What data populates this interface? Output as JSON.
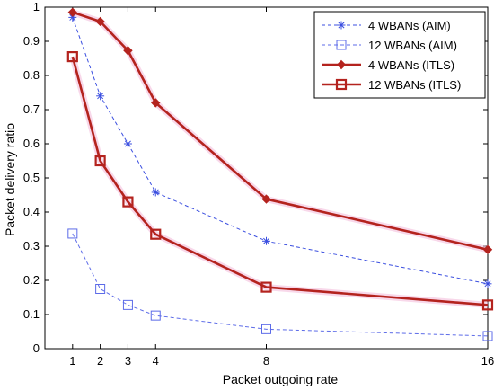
{
  "chart_data": {
    "type": "line",
    "title": "",
    "xlabel": "Packet outgoing rate",
    "ylabel": "Packet delivery ratio",
    "x": [
      1,
      2,
      3,
      4,
      8,
      16
    ],
    "xticks": [
      1,
      2,
      3,
      4,
      8,
      16
    ],
    "xlim": [
      0,
      16
    ],
    "ylim": [
      0,
      1
    ],
    "yticks": [
      0,
      0.1,
      0.2,
      0.3,
      0.4,
      0.5,
      0.6,
      0.7,
      0.8,
      0.9,
      1
    ],
    "ytick_labels": [
      "0",
      "0.1",
      "0.2",
      "0.3",
      "0.4",
      "0.5",
      "0.6",
      "0.7",
      "0.8",
      "0.9",
      "1"
    ],
    "grid": false,
    "legend_position": "top-right",
    "series": [
      {
        "name": "4 WBANs (AIM)",
        "values": [
          0.97,
          0.74,
          0.6,
          0.458,
          0.315,
          0.19
        ],
        "color": "#3b4fe0",
        "marker": "asterisk",
        "line_style": "dashed"
      },
      {
        "name": "12 WBANs (AIM)",
        "values": [
          0.337,
          0.175,
          0.128,
          0.097,
          0.057,
          0.037
        ],
        "color": "#5c6be8",
        "marker": "square-open",
        "line_style": "dashed"
      },
      {
        "name": "4 WBANs (ITLS)",
        "values": [
          0.985,
          0.958,
          0.873,
          0.72,
          0.438,
          0.29
        ],
        "color": "#b4231e",
        "marker": "diamond",
        "line_style": "solid"
      },
      {
        "name": "12 WBANs (ITLS)",
        "values": [
          0.855,
          0.55,
          0.43,
          0.335,
          0.18,
          0.128
        ],
        "color": "#b4231e",
        "marker": "square-open",
        "line_style": "solid"
      }
    ]
  }
}
